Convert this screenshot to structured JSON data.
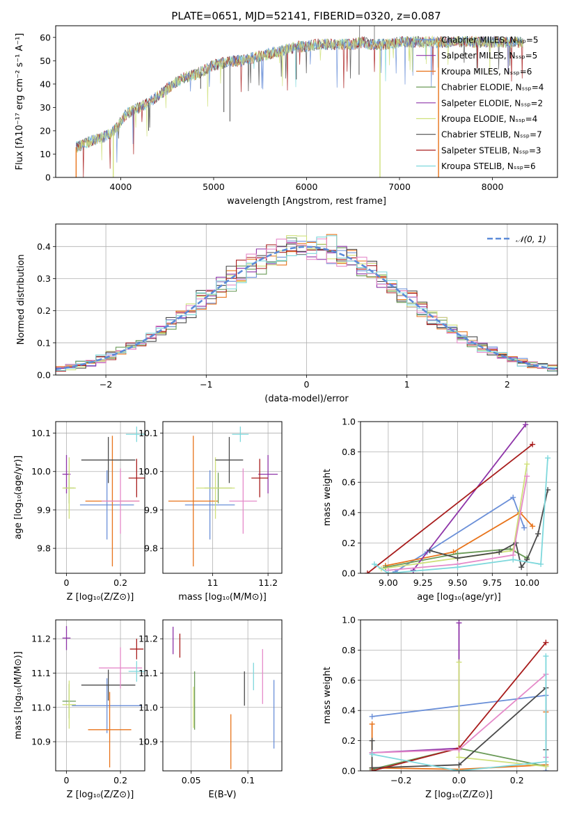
{
  "title": "PLATE=0651, MJD=52141, FIBERID=0320, z=0.087",
  "colors": [
    "#6a8fd8",
    "#e8731a",
    "#6a9a57",
    "#8e34a8",
    "#cfe07a",
    "#4a4a4a",
    "#a81c1c",
    "#e58ac9",
    "#7ed8dc"
  ],
  "chart_data": [
    {
      "id": "spectrum",
      "type": "line",
      "xlabel": "wavelength [Angstrom, rest frame]",
      "ylabel": "Flux [fλ10⁻¹⁷ erg cm⁻² s⁻¹ A⁻¹]",
      "xlim": [
        3300,
        8700
      ],
      "ylim": [
        0,
        65
      ],
      "xticks": [
        4000,
        5000,
        6000,
        7000,
        8000
      ],
      "yticks": [
        0,
        10,
        20,
        30,
        40,
        50,
        60
      ],
      "legend_loc": "upper right",
      "legend": [
        "Chabrier MILES, Nₛₛₚ=5",
        "Salpeter MILES, Nₛₛₚ=5",
        "Kroupa MILES, Nₛₛₚ=6",
        "Chabrier ELODIE, Nₛₛₚ=4",
        "Salpeter ELODIE, Nₛₛₚ=2",
        "Kroupa ELODIE, Nₛₛₚ=4",
        "Chabrier STELIB, Nₛₛₚ=7",
        "Salpeter STELIB, Nₛₛₚ=3",
        "Kroupa STELIB, Nₛₛₚ=6"
      ],
      "legend_colors": [
        "#6a8fd8",
        "#8e34a8",
        "#e8731a",
        "#6a9a57",
        "#8e34a8",
        "#cfe07a",
        "#4a4a4a",
        "#a81c1c",
        "#7ed8dc"
      ],
      "envelope": {
        "x": [
          3520,
          3600,
          3700,
          3800,
          3900,
          3950,
          4050,
          4100,
          4200,
          4300,
          4400,
          4500,
          4600,
          4700,
          4800,
          4900,
          5000,
          5100,
          5200,
          5300,
          5400,
          5500,
          5600,
          5700,
          5800,
          5900,
          6000,
          6100,
          6200,
          6300,
          6400,
          6500,
          6600,
          6700,
          6800,
          6900,
          7000,
          7100,
          7200,
          7300,
          7400,
          7500,
          7600,
          7700,
          7800,
          7900,
          8000,
          8100,
          8200,
          8300
        ],
        "y": [
          13,
          14,
          16,
          17,
          19,
          21,
          27,
          28,
          30,
          32,
          35,
          38,
          41,
          43,
          44,
          46,
          48,
          49,
          50,
          50,
          51,
          52,
          53,
          54,
          55,
          56,
          56,
          57,
          57,
          57,
          57,
          57,
          58,
          57,
          57,
          57,
          58,
          58,
          58,
          58,
          58,
          58,
          58,
          58,
          58,
          58,
          58,
          58,
          58,
          58
        ]
      },
      "drops": [
        {
          "x": 3520,
          "color": "#e8731a"
        },
        {
          "x": 3920,
          "color": "#cfe07a"
        },
        {
          "x": 6790,
          "color": "#cfe07a"
        },
        {
          "x": 7420,
          "color": "#e8731a"
        }
      ]
    },
    {
      "id": "residuals",
      "type": "line",
      "xlabel": "(data-model)/error",
      "ylabel": "Normed distribution",
      "xlim": [
        -2.5,
        2.5
      ],
      "ylim": [
        0,
        0.47
      ],
      "xticks": [
        -2,
        -1,
        0,
        1,
        2
      ],
      "yticks": [
        0.0,
        0.1,
        0.2,
        0.3,
        0.4
      ],
      "legend": [
        "𝒩(0, 1)"
      ],
      "legend_loc": "upper right",
      "gaussian": {
        "mean": 0,
        "sigma": 1,
        "color": "#5b8ad8"
      }
    },
    {
      "id": "age-vs-Z",
      "type": "scatter",
      "xlabel": "Z [log₁₀(Z/Z⊙)]",
      "ylabel": "age  [log₁₀(age/yr)]",
      "xlim": [
        -0.04,
        0.29
      ],
      "ylim": [
        9.735,
        10.13
      ],
      "xticks": [
        0.0,
        0.2
      ],
      "yticks": [
        9.8,
        9.9,
        10.0,
        10.1
      ],
      "points": [
        {
          "x": 0.15,
          "y": 9.913,
          "xerr": 0.1,
          "yerr": 0.09,
          "color": "#6a8fd8"
        },
        {
          "x": 0.17,
          "y": 9.923,
          "xerr": 0.1,
          "yerr": 0.17,
          "color": "#e8731a"
        },
        {
          "x": 0.01,
          "y": 9.957,
          "xerr": 0.02,
          "yerr": 0.04,
          "color": "#6a9a57"
        },
        {
          "x": 0.0,
          "y": 9.993,
          "xerr": 0.015,
          "yerr": 0.05,
          "color": "#8e34a8"
        },
        {
          "x": 0.01,
          "y": 9.957,
          "xerr": 0.025,
          "yerr": 0.08,
          "color": "#cfe07a"
        },
        {
          "x": 0.155,
          "y": 10.03,
          "xerr": 0.1,
          "yerr": 0.06,
          "color": "#4a4a4a"
        },
        {
          "x": 0.26,
          "y": 9.983,
          "xerr": 0.03,
          "yerr": 0.05,
          "color": "#a81c1c"
        },
        {
          "x": 0.2,
          "y": 9.923,
          "xerr": 0.07,
          "yerr": 0.085,
          "color": "#e58ac9"
        },
        {
          "x": 0.26,
          "y": 10.097,
          "xerr": 0.04,
          "yerr": 0.02,
          "color": "#7ed8dc"
        }
      ]
    },
    {
      "id": "age-vs-mass",
      "type": "scatter",
      "xlabel": "mass [log₁₀(M/M⊙)]",
      "ylabel": "",
      "xlim": [
        10.82,
        11.25
      ],
      "ylim": [
        9.735,
        10.13
      ],
      "xticks": [
        11.0,
        11.2
      ],
      "yticks": [
        9.8,
        9.9,
        10.0,
        10.1
      ],
      "points": [
        {
          "x": 10.99,
          "y": 9.913,
          "xerr": 0.09,
          "yerr": 0.09,
          "color": "#6a8fd8"
        },
        {
          "x": 10.93,
          "y": 9.923,
          "xerr": 0.09,
          "yerr": 0.17,
          "color": "#e8731a"
        },
        {
          "x": 11.02,
          "y": 9.957,
          "xerr": 0.05,
          "yerr": 0.04,
          "color": "#6a9a57"
        },
        {
          "x": 11.2,
          "y": 9.993,
          "xerr": 0.035,
          "yerr": 0.05,
          "color": "#8e34a8"
        },
        {
          "x": 11.01,
          "y": 9.957,
          "xerr": 0.07,
          "yerr": 0.08,
          "color": "#cfe07a"
        },
        {
          "x": 11.06,
          "y": 10.03,
          "xerr": 0.05,
          "yerr": 0.06,
          "color": "#4a4a4a"
        },
        {
          "x": 11.17,
          "y": 9.983,
          "xerr": 0.03,
          "yerr": 0.05,
          "color": "#a81c1c"
        },
        {
          "x": 11.11,
          "y": 9.923,
          "xerr": 0.05,
          "yerr": 0.085,
          "color": "#e58ac9"
        },
        {
          "x": 11.1,
          "y": 10.097,
          "xerr": 0.03,
          "yerr": 0.02,
          "color": "#7ed8dc"
        }
      ]
    },
    {
      "id": "mass-weight-vs-age",
      "type": "line",
      "xlabel": "age  [log₁₀(age/yr)]",
      "ylabel": "mass weight",
      "xlim": [
        8.8,
        10.22
      ],
      "ylim": [
        0.0,
        1.0
      ],
      "xticks": [
        9.0,
        9.25,
        9.5,
        9.75,
        10.0
      ],
      "yticks": [
        0.0,
        0.2,
        0.4,
        0.6,
        0.8,
        1.0
      ],
      "series": [
        {
          "color": "#6a8fd8",
          "x": [
            9.05,
            9.28,
            9.9,
            9.98
          ],
          "y": [
            0.01,
            0.14,
            0.5,
            0.3
          ]
        },
        {
          "color": "#e8731a",
          "x": [
            8.98,
            9.47,
            9.95,
            10.04
          ],
          "y": [
            0.05,
            0.14,
            0.4,
            0.31
          ]
        },
        {
          "color": "#6a9a57",
          "x": [
            8.98,
            9.5,
            9.88,
            10.0
          ],
          "y": [
            0.04,
            0.13,
            0.16,
            0.1
          ]
        },
        {
          "color": "#8e34a8",
          "x": [
            9.18,
            9.99
          ],
          "y": [
            0.02,
            0.98
          ]
        },
        {
          "color": "#cfe07a",
          "x": [
            8.95,
            9.5,
            9.9,
            10.0
          ],
          "y": [
            0.03,
            0.1,
            0.15,
            0.72
          ]
        },
        {
          "color": "#4a4a4a",
          "x": [
            9.3,
            9.5,
            9.8,
            9.92,
            9.96,
            10.0,
            10.08,
            10.15
          ],
          "y": [
            0.15,
            0.1,
            0.14,
            0.2,
            0.04,
            0.09,
            0.26,
            0.55
          ]
        },
        {
          "color": "#a81c1c",
          "x": [
            8.85,
            10.04
          ],
          "y": [
            0.0,
            0.85
          ]
        },
        {
          "color": "#e58ac9",
          "x": [
            9.0,
            9.5,
            9.9,
            10.0
          ],
          "y": [
            0.02,
            0.06,
            0.12,
            0.64
          ]
        },
        {
          "color": "#7ed8dc",
          "x": [
            8.9,
            9.0,
            9.5,
            9.9,
            10.1,
            10.15
          ],
          "y": [
            0.06,
            0.0,
            0.04,
            0.09,
            0.06,
            0.76
          ]
        }
      ]
    },
    {
      "id": "mass-vs-Z",
      "type": "scatter",
      "xlabel": "Z [log₁₀(Z/Z⊙)]",
      "ylabel": "mass [log₁₀(M/M⊙)]",
      "xlim": [
        -0.04,
        0.29
      ],
      "ylim": [
        10.815,
        11.255
      ],
      "xticks": [
        0.0,
        0.2
      ],
      "yticks": [
        10.9,
        11.0,
        11.1,
        11.2
      ],
      "points": [
        {
          "x": 0.15,
          "y": 11.005,
          "xerr": 0.13,
          "yerr": 0.08,
          "color": "#6a8fd8"
        },
        {
          "x": 0.16,
          "y": 10.935,
          "xerr": 0.08,
          "yerr": 0.11,
          "color": "#e8731a"
        },
        {
          "x": 0.01,
          "y": 11.018,
          "xerr": 0.025,
          "yerr": 0.05,
          "color": "#6a9a57"
        },
        {
          "x": 0.0,
          "y": 11.202,
          "xerr": 0.015,
          "yerr": 0.035,
          "color": "#8e34a8"
        },
        {
          "x": 0.01,
          "y": 11.008,
          "xerr": 0.025,
          "yerr": 0.07,
          "color": "#cfe07a"
        },
        {
          "x": 0.155,
          "y": 11.065,
          "xerr": 0.1,
          "yerr": 0.045,
          "color": "#4a4a4a"
        },
        {
          "x": 0.26,
          "y": 11.17,
          "xerr": 0.025,
          "yerr": 0.03,
          "color": "#a81c1c"
        },
        {
          "x": 0.2,
          "y": 11.115,
          "xerr": 0.08,
          "yerr": 0.06,
          "color": "#e58ac9"
        },
        {
          "x": 0.26,
          "y": 11.105,
          "xerr": 0.03,
          "yerr": 0.03,
          "color": "#7ed8dc"
        }
      ]
    },
    {
      "id": "mass-vs-EBV",
      "type": "scatter",
      "xlabel": "E(B-V)",
      "ylabel": "",
      "xlim": [
        0.025,
        0.13
      ],
      "ylim": [
        10.815,
        11.255
      ],
      "xticks": [
        0.05,
        0.1
      ],
      "yticks": [
        10.9,
        11.0,
        11.1,
        11.2
      ],
      "points": [
        {
          "x": 0.123,
          "y": 10.98,
          "yerr": 0.1,
          "color": "#6a8fd8"
        },
        {
          "x": 0.085,
          "y": 10.9,
          "yerr": 0.08,
          "color": "#e8731a"
        },
        {
          "x": 0.053,
          "y": 11.02,
          "yerr": 0.085,
          "color": "#6a9a57"
        },
        {
          "x": 0.034,
          "y": 11.195,
          "yerr": 0.04,
          "color": "#8e34a8"
        },
        {
          "x": 0.052,
          "y": 11.0,
          "yerr": 0.06,
          "color": "#cfe07a"
        },
        {
          "x": 0.097,
          "y": 11.055,
          "yerr": 0.05,
          "color": "#4a4a4a"
        },
        {
          "x": 0.04,
          "y": 11.18,
          "yerr": 0.035,
          "color": "#a81c1c"
        },
        {
          "x": 0.113,
          "y": 11.09,
          "yerr": 0.08,
          "color": "#e58ac9"
        },
        {
          "x": 0.105,
          "y": 11.09,
          "yerr": 0.04,
          "color": "#7ed8dc"
        }
      ]
    },
    {
      "id": "mass-weight-vs-Z",
      "type": "line",
      "xlabel": "Z [log₁₀(Z/Z⊙)]",
      "ylabel": "mass weight",
      "xlim": [
        -0.34,
        0.34
      ],
      "ylim": [
        0.0,
        1.0
      ],
      "xticks": [
        -0.2,
        0.0,
        0.2
      ],
      "yticks": [
        0.0,
        0.2,
        0.4,
        0.6,
        0.8,
        1.0
      ],
      "series": [
        {
          "color": "#6a8fd8",
          "x": [
            -0.3,
            0.3,
            0.3
          ],
          "y": [
            0.36,
            0.5,
            0.0
          ]
        },
        {
          "color": "#e8731a",
          "x": [
            -0.3,
            -0.3,
            0.0,
            0.3,
            0.3
          ],
          "y": [
            0.31,
            0.02,
            0.01,
            0.04,
            0.39
          ]
        },
        {
          "color": "#6a9a57",
          "x": [
            -0.3,
            0.0,
            0.3
          ],
          "y": [
            0.01,
            0.15,
            0.03
          ]
        },
        {
          "color": "#8e34a8",
          "x": [
            -0.3,
            0.0,
            0.0
          ],
          "y": [
            0.12,
            0.15,
            0.98
          ]
        },
        {
          "color": "#cfe07a",
          "x": [
            0.0,
            0.0,
            0.3
          ],
          "y": [
            0.72,
            0.09,
            0.03
          ]
        },
        {
          "color": "#4a4a4a",
          "x": [
            -0.3,
            -0.3,
            0.0,
            0.3,
            0.3
          ],
          "y": [
            0.2,
            0.02,
            0.04,
            0.55,
            0.14
          ]
        },
        {
          "color": "#a81c1c",
          "x": [
            -0.3,
            0.0,
            0.3
          ],
          "y": [
            0.0,
            0.15,
            0.85
          ]
        },
        {
          "color": "#e58ac9",
          "x": [
            -0.3,
            0.0,
            0.3,
            0.3
          ],
          "y": [
            0.12,
            0.14,
            0.64,
            0.09
          ]
        },
        {
          "color": "#7ed8dc",
          "x": [
            -0.3,
            0.0,
            0.3,
            0.3
          ],
          "y": [
            0.11,
            0.0,
            0.06,
            0.76
          ]
        }
      ]
    }
  ]
}
